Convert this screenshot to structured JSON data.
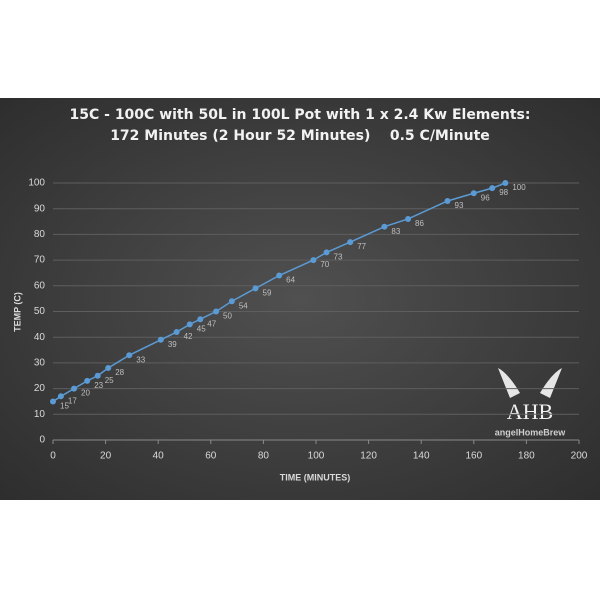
{
  "chart_data": {
    "type": "line",
    "title": "15C - 100C with 50L in 100L Pot with 1 x 2.4 Kw Elements:",
    "subtitle": "172 Minutes (2 Hour 52 Minutes)    0.5 C/Minute",
    "x_label": "TIME (MINUTES)",
    "y_label": "TEMP (C)",
    "x": [
      0,
      3,
      8,
      13,
      17,
      21,
      29,
      41,
      47,
      52,
      56,
      62,
      68,
      77,
      86,
      99,
      104,
      113,
      126,
      135,
      150,
      160,
      167,
      172
    ],
    "series": [
      {
        "name": "Temp",
        "color": "#5b9bd5",
        "values": [
          15,
          17,
          20,
          23,
          25,
          28,
          33,
          39,
          42,
          45,
          47,
          50,
          54,
          59,
          64,
          70,
          73,
          77,
          83,
          86,
          93,
          96,
          98,
          100
        ]
      }
    ],
    "xlim": [
      0,
      200
    ],
    "xticks": [
      0,
      20,
      40,
      60,
      80,
      100,
      120,
      140,
      160,
      180,
      200
    ],
    "ylim": [
      0,
      100
    ],
    "yticks": [
      0,
      10,
      20,
      30,
      40,
      50,
      60,
      70,
      80,
      90,
      100
    ],
    "grid": true,
    "watermark": {
      "logo": "AHB",
      "text": "angelHomeBrew"
    }
  }
}
